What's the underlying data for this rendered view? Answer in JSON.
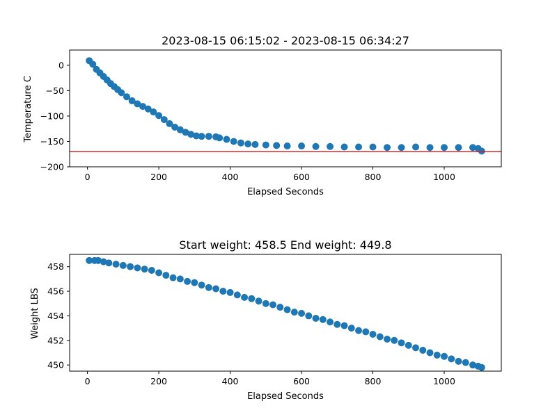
{
  "chart_data": [
    {
      "type": "scatter",
      "title": "2023-08-15 06:15:02 - 2023-08-15 06:34:27",
      "xlabel": "Elapsed Seconds",
      "ylabel": "Temperature C",
      "xlim": [
        -50,
        1160
      ],
      "ylim": [
        -200,
        30
      ],
      "xticks": [
        0,
        200,
        400,
        600,
        800,
        1000
      ],
      "yticks": [
        0,
        -50,
        -100,
        -150,
        -200
      ],
      "yticklabels": [
        "0",
        "−50",
        "−100",
        "−150",
        "−200"
      ],
      "marker_color": "#1f77b4",
      "reference_line": {
        "y": -170,
        "color": "#d62728"
      },
      "series": [
        {
          "x": [
            5,
            15,
            25,
            35,
            45,
            55,
            65,
            75,
            85,
            95,
            110,
            125,
            140,
            155,
            170,
            185,
            200,
            215,
            230,
            245,
            260,
            275,
            290,
            305,
            320,
            340,
            360,
            370,
            390,
            410,
            430,
            450,
            470,
            500,
            530,
            560,
            600,
            640,
            680,
            720,
            760,
            800,
            840,
            880,
            920,
            960,
            1000,
            1040,
            1080,
            1095,
            1105
          ],
          "y": [
            9,
            2,
            -8,
            -15,
            -22,
            -29,
            -36,
            -42,
            -48,
            -54,
            -62,
            -70,
            -76,
            -81,
            -86,
            -92,
            -99,
            -107,
            -115,
            -122,
            -127,
            -132,
            -136,
            -139,
            -140,
            -140,
            -141,
            -143,
            -146,
            -150,
            -153,
            -155,
            -156,
            -157,
            -158,
            -159,
            -159,
            -160,
            -160,
            -161,
            -161,
            -161,
            -162,
            -162,
            -161,
            -162,
            -162,
            -162,
            -162,
            -164,
            -169
          ]
        }
      ]
    },
    {
      "type": "scatter",
      "title": "Start weight: 458.5 End weight: 449.8",
      "xlabel": "Elapsed Seconds",
      "ylabel": "Weight LBS",
      "xlim": [
        -50,
        1160
      ],
      "ylim": [
        449.5,
        459
      ],
      "xticks": [
        0,
        200,
        400,
        600,
        800,
        1000
      ],
      "yticks": [
        450,
        452,
        454,
        456,
        458
      ],
      "marker_color": "#1f77b4",
      "series": [
        {
          "x": [
            5,
            20,
            30,
            45,
            60,
            80,
            100,
            120,
            140,
            160,
            180,
            200,
            220,
            240,
            260,
            280,
            300,
            320,
            340,
            360,
            380,
            400,
            420,
            440,
            460,
            480,
            500,
            520,
            540,
            560,
            580,
            600,
            620,
            640,
            660,
            680,
            700,
            720,
            740,
            760,
            780,
            800,
            820,
            840,
            860,
            880,
            900,
            920,
            940,
            960,
            980,
            1000,
            1020,
            1040,
            1060,
            1080,
            1095,
            1105
          ],
          "y": [
            458.5,
            458.5,
            458.5,
            458.4,
            458.3,
            458.2,
            458.1,
            458.0,
            457.9,
            457.8,
            457.7,
            457.5,
            457.3,
            457.1,
            457.0,
            456.8,
            456.7,
            456.5,
            456.3,
            456.2,
            456.0,
            455.9,
            455.7,
            455.5,
            455.4,
            455.2,
            455.0,
            454.9,
            454.7,
            454.5,
            454.3,
            454.2,
            454.0,
            453.8,
            453.7,
            453.5,
            453.3,
            453.2,
            453.0,
            452.8,
            452.7,
            452.5,
            452.3,
            452.1,
            452.0,
            451.8,
            451.6,
            451.4,
            451.2,
            451.0,
            450.8,
            450.7,
            450.5,
            450.3,
            450.2,
            450.0,
            449.9,
            449.8
          ]
        }
      ]
    }
  ]
}
